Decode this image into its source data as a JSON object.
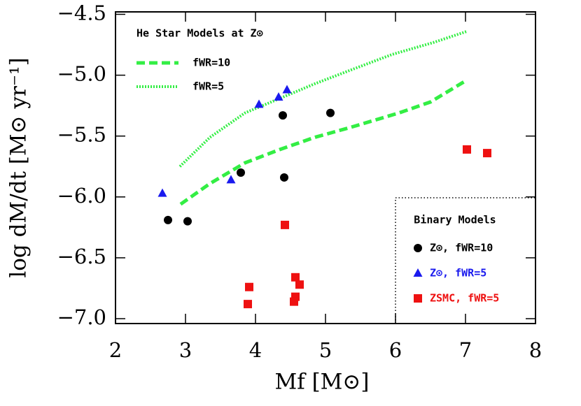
{
  "chart_data": {
    "type": "scatter",
    "x_label": "Mf  [M⊙]",
    "y_label": "log dM/dt  [M⊙ yr⁻¹]",
    "xlim": [
      2,
      8
    ],
    "ylim": [
      -7.04,
      -4.48
    ],
    "xticks": [
      2,
      3,
      4,
      5,
      6,
      7,
      8
    ],
    "yticks": [
      {
        "value": -7,
        "label": "−7.0"
      },
      {
        "value": -6.5,
        "label": "−6.5"
      },
      {
        "value": -6,
        "label": "−6.0"
      },
      {
        "value": -5.5,
        "label": "−5.5"
      },
      {
        "value": -5,
        "label": "−5.0"
      },
      {
        "value": -4.5,
        "label": "−4.5"
      }
    ],
    "line_legend_title": "He Star Models at Z⊙",
    "point_legend_title": "Binary Models",
    "lines": [
      {
        "name": "fWR=10",
        "color": "#33ee44",
        "style": "dashed",
        "x": [
          2.93,
          3.35,
          3.85,
          4.35,
          4.85,
          5.35,
          6.05,
          6.5,
          7.02
        ],
        "values": [
          -6.06,
          -5.89,
          -5.72,
          -5.61,
          -5.51,
          -5.43,
          -5.31,
          -5.22,
          -5.04
        ]
      },
      {
        "name": "fWR=5",
        "color": "#33ee44",
        "style": "dotted",
        "x": [
          2.92,
          3.35,
          3.85,
          4.35,
          4.85,
          5.35,
          5.95,
          6.55,
          7.02
        ],
        "values": [
          -5.75,
          -5.51,
          -5.31,
          -5.19,
          -5.07,
          -4.96,
          -4.83,
          -4.73,
          -4.64
        ]
      }
    ],
    "series": [
      {
        "name": "Z⊙, fWR=10",
        "color": "#000000",
        "marker": "circle",
        "x": [
          2.75,
          3.03,
          3.79,
          4.39,
          4.41,
          5.07
        ],
        "values": [
          -6.19,
          -6.2,
          -5.8,
          -5.33,
          -5.84,
          -5.31
        ]
      },
      {
        "name": "Z⊙, fWR=5",
        "color": "#1a1aee",
        "marker": "triangle",
        "x": [
          2.67,
          3.65,
          4.05,
          4.33,
          4.45
        ],
        "values": [
          -5.97,
          -5.86,
          -5.24,
          -5.18,
          -5.12
        ]
      },
      {
        "name": "ZSMC, fWR=5",
        "color": "#ee1111",
        "marker": "square",
        "x": [
          4.42,
          3.91,
          3.89,
          4.57,
          4.63,
          4.57,
          4.55,
          7.02,
          7.31
        ],
        "values": [
          -6.23,
          -6.74,
          -6.88,
          -6.66,
          -6.72,
          -6.82,
          -6.86,
          -5.61,
          -5.64
        ]
      }
    ]
  }
}
